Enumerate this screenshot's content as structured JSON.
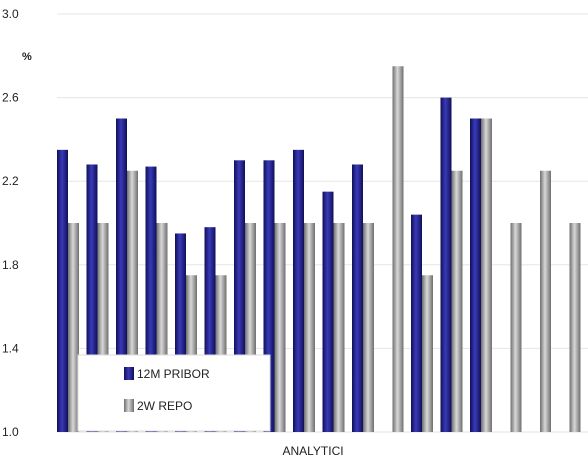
{
  "chart_data": {
    "type": "bar",
    "unit_label": "%",
    "xlabel": "ANALYTICI",
    "categories": [
      "",
      "",
      "",
      "",
      "",
      "",
      "",
      "",
      "",
      "",
      "",
      "",
      "",
      "",
      "",
      "",
      "",
      "",
      "",
      ""
    ],
    "ylim": [
      1.0,
      3.0
    ],
    "yticks": [
      "1.0",
      "1.4",
      "1.8",
      "2.2",
      "2.6",
      "3.0"
    ],
    "ytick_values": [
      1.0,
      1.4,
      1.8,
      2.2,
      2.6,
      3.0
    ],
    "grid": true,
    "legend_position": "bottom-left",
    "series": [
      {
        "name": "12M PRIBOR",
        "color": "#1f1f8a",
        "values": [
          2.35,
          2.28,
          2.5,
          2.27,
          1.95,
          1.98,
          2.3,
          2.3,
          2.35,
          2.15,
          2.28,
          null,
          2.04,
          2.6,
          2.5,
          null,
          null,
          null,
          null,
          null
        ]
      },
      {
        "name": "2W REPO",
        "color": "#a8a8a8",
        "values": [
          2.0,
          2.0,
          2.25,
          2.0,
          1.75,
          1.75,
          2.0,
          2.0,
          2.0,
          2.0,
          2.0,
          2.75,
          1.75,
          2.25,
          2.5,
          2.0,
          2.25,
          2.0,
          null,
          null
        ]
      }
    ]
  }
}
